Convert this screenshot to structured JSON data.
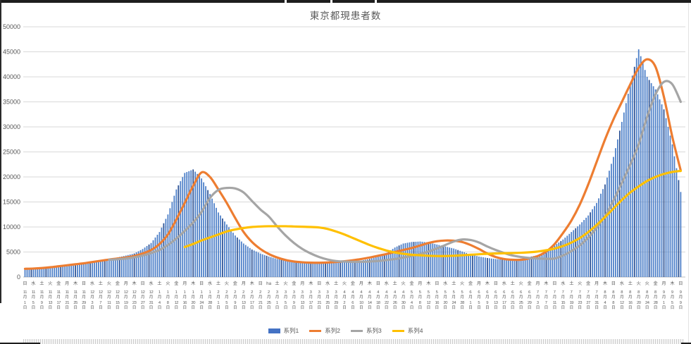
{
  "chart_data": {
    "type": "combo",
    "title": "東京都現患者数",
    "grid": true,
    "legend_position": "bottom",
    "y_axis": {
      "min": 0,
      "max": 50000,
      "step": 5000
    },
    "x_axis": {
      "tick_interval_days": 4,
      "bars_per_interval": 4,
      "weekday_row": [
        "日",
        "水",
        "土",
        "火",
        "金",
        "月",
        "木",
        "日",
        "水",
        "土",
        "火",
        "金",
        "月",
        "木",
        "日",
        "水",
        "土",
        "火",
        "金",
        "月",
        "木",
        "日",
        "水",
        "土",
        "火",
        "金",
        "月",
        "木",
        "日",
        "ha",
        "土",
        "火",
        "金",
        "月",
        "木",
        "日",
        "水",
        "土",
        "火",
        "金",
        "月",
        "木",
        "日",
        "水",
        "土",
        "火",
        "金",
        "月",
        "木",
        "日",
        "水",
        "土",
        "火",
        "金",
        "月",
        "木",
        "日",
        "水",
        "土",
        "火",
        "金",
        "月",
        "木",
        "日",
        "水",
        "土",
        "火",
        "金",
        "月",
        "木",
        "日",
        "水",
        "土",
        "火",
        "火",
        "金",
        "月",
        "木",
        "日"
      ],
      "date_row": [
        "11月1日",
        "11月5日",
        "11月9日",
        "11月13日",
        "11月17日",
        "11月21日",
        "11月25日",
        "11月29日",
        "12月3日",
        "12月7日",
        "12月11日",
        "12月15日",
        "12月19日",
        "12月23日",
        "12月27日",
        "12月31日",
        "1月4日",
        "1月8日",
        "1月12日",
        "1月16日",
        "1月20日",
        "1月24日",
        "1月28日",
        "2月1日",
        "2月5日",
        "2月9日",
        "2月13日",
        "2月17日",
        "2月21日",
        "2月25日",
        "3月1日",
        "3月5日",
        "3月9日",
        "3月13日",
        "3月17日",
        "3月21日",
        "3月25日",
        "3月29日",
        "4月2日",
        "4月6日",
        "4月10日",
        "4月14日",
        "4月18日",
        "4月22日",
        "4月26日",
        "4月30日",
        "5月4日",
        "5月8日",
        "5月12日",
        "5月16日",
        "5月20日",
        "5月24日",
        "5月28日",
        "6月1日",
        "6月5日",
        "6月9日",
        "6月13日",
        "6月17日",
        "6月21日",
        "6月25日",
        "6月29日",
        "7月3日",
        "7月7日",
        "7月11日",
        "7月15日",
        "7月19日",
        "7月23日",
        "7月27日",
        "7月31日",
        "8月4日",
        "8月8日",
        "8月12日",
        "8月16日",
        "8月20日",
        "8月24日",
        "8月28日",
        "9月1日",
        "9月5日",
        "9月9日"
      ]
    },
    "series": [
      {
        "name": "系列1",
        "type": "bar",
        "color": "#4472C4",
        "values": [
          1550,
          1600,
          1700,
          1800,
          1950,
          2150,
          2350,
          2600,
          2900,
          3200,
          3500,
          3900,
          4300,
          4700,
          5600,
          6800,
          9000,
          12500,
          17500,
          20800,
          21500,
          19700,
          16600,
          12900,
          10500,
          8300,
          6700,
          5500,
          4700,
          4100,
          3600,
          3300,
          3100,
          3000,
          3000,
          2950,
          2950,
          3000,
          3050,
          3150,
          3300,
          3600,
          4100,
          4800,
          5900,
          6700,
          7000,
          7100,
          6900,
          6500,
          6100,
          5700,
          5100,
          4500,
          4100,
          3800,
          3600,
          3500,
          3550,
          3700,
          4000,
          4400,
          5200,
          6300,
          7500,
          9000,
          10500,
          12300,
          14800,
          18500,
          24000,
          31000,
          38500,
          45500,
          40000,
          37500,
          33500,
          26500,
          17000
        ]
      },
      {
        "name": "系列2",
        "type": "line",
        "color": "#ED7D31",
        "values": [
          1650,
          1700,
          1800,
          1950,
          2150,
          2350,
          2550,
          2750,
          3000,
          3250,
          3500,
          3700,
          3900,
          4200,
          4700,
          5400,
          6600,
          8500,
          11500,
          14800,
          18200,
          20900,
          20000,
          17500,
          14800,
          11800,
          9000,
          7000,
          5600,
          4600,
          3900,
          3400,
          3100,
          2950,
          2870,
          2850,
          2900,
          3000,
          3150,
          3350,
          3600,
          3900,
          4250,
          4600,
          5000,
          5400,
          5800,
          6300,
          6800,
          7150,
          7300,
          7250,
          7000,
          6400,
          5600,
          4700,
          4000,
          3600,
          3450,
          3450,
          3700,
          4200,
          5100,
          6600,
          8800,
          11300,
          14500,
          18500,
          23000,
          27500,
          31500,
          35000,
          38500,
          41800,
          43500,
          42000,
          36000,
          28000,
          21300
        ]
      },
      {
        "name": "系列3",
        "type": "line",
        "color": "#A5A5A5",
        "values": [
          null,
          null,
          null,
          null,
          null,
          null,
          null,
          null,
          null,
          null,
          3450,
          3550,
          3700,
          3950,
          4300,
          4800,
          5400,
          6400,
          7700,
          9200,
          10900,
          13000,
          15800,
          17400,
          17800,
          17700,
          16900,
          15200,
          13500,
          12100,
          10100,
          8300,
          6800,
          5600,
          4700,
          4000,
          3500,
          3200,
          3100,
          3050,
          3050,
          3100,
          3200,
          3400,
          3600,
          3900,
          4200,
          4600,
          5100,
          5700,
          6400,
          7100,
          7500,
          7400,
          6900,
          6100,
          5400,
          4800,
          4300,
          4000,
          3800,
          3700,
          3650,
          3700,
          4300,
          5200,
          6300,
          7900,
          9800,
          12200,
          15300,
          18800,
          22500,
          26500,
          32000,
          36500,
          39000,
          38500,
          35000
        ]
      },
      {
        "name": "系列4",
        "type": "line",
        "color": "#FFC000",
        "values": [
          null,
          null,
          null,
          null,
          null,
          null,
          null,
          null,
          null,
          null,
          null,
          null,
          null,
          null,
          null,
          null,
          null,
          null,
          null,
          6000,
          6600,
          7300,
          7900,
          8500,
          9100,
          9500,
          9800,
          10000,
          10100,
          10150,
          10150,
          10150,
          10100,
          10050,
          10000,
          9900,
          9600,
          9100,
          8500,
          7800,
          7100,
          6400,
          5800,
          5300,
          4900,
          4650,
          4450,
          4350,
          4250,
          4200,
          4200,
          4250,
          4350,
          4450,
          4550,
          4650,
          4700,
          4750,
          4800,
          4850,
          4950,
          5100,
          5350,
          5700,
          6200,
          6900,
          7800,
          9000,
          10400,
          12000,
          13700,
          15400,
          16900,
          18100,
          19200,
          20000,
          20600,
          21000,
          21200
        ]
      }
    ],
    "colors": {
      "bar_fill": "#4F81C9",
      "bar_fill_dark": "#2F5597",
      "grid": "#D9D9D9",
      "axis_line": "#BFBFBF",
      "text": "#595959"
    }
  }
}
